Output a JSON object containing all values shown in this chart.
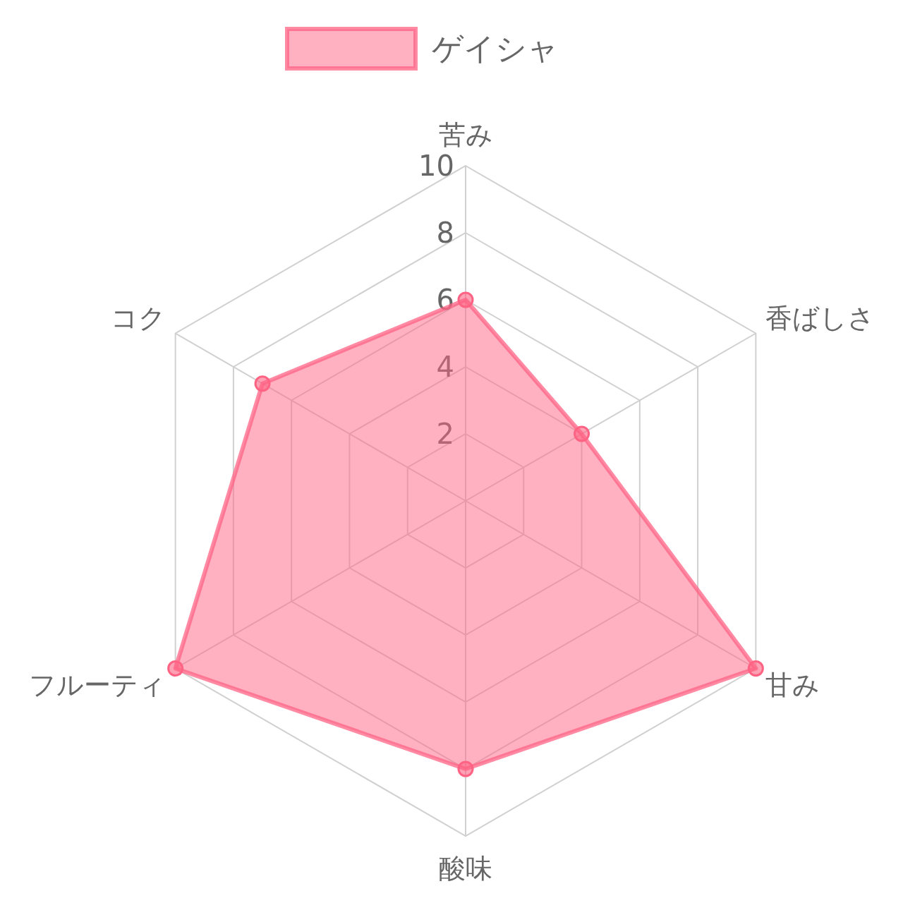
{
  "chart_data": {
    "type": "radar",
    "categories": [
      "苦み",
      "香ばしさ",
      "甘み",
      "酸味",
      "フルーティ",
      "コク"
    ],
    "series": [
      {
        "name": "ゲイシャ",
        "color": "#ff6384",
        "values": [
          6,
          4,
          10,
          8,
          10,
          7
        ]
      }
    ],
    "ylim": [
      0,
      10
    ],
    "yticks": [
      2,
      4,
      6,
      8,
      10
    ],
    "grid": true,
    "legend": "top",
    "marker": "circle"
  }
}
